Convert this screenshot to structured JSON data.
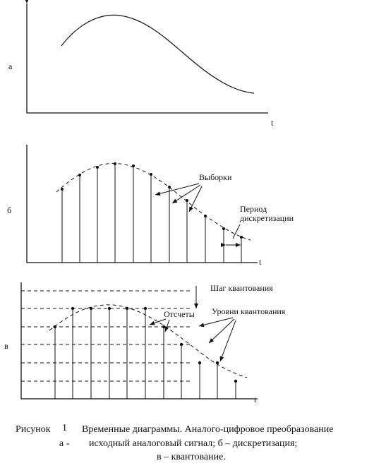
{
  "panel_a": {
    "label": "а",
    "axis_label": "t"
  },
  "panel_b": {
    "label": "б",
    "axis_label": "t",
    "samples_label": "Выборки",
    "period_label": [
      "Период",
      "дискретизации"
    ]
  },
  "panel_c": {
    "label": "в",
    "axis_label": "t",
    "step_label": "Шаг квантования",
    "counts_label": "Отсчеты",
    "levels_label": "Уровни квантования"
  },
  "caption": {
    "figure": "Рисунок",
    "number": "1",
    "title": "Временные диаграммы. Аналого-цифровое преобразование",
    "part_a": "а -",
    "line2": "исходный аналоговый сигнал; б – дискретизация;",
    "line3": "в – квантование."
  }
}
